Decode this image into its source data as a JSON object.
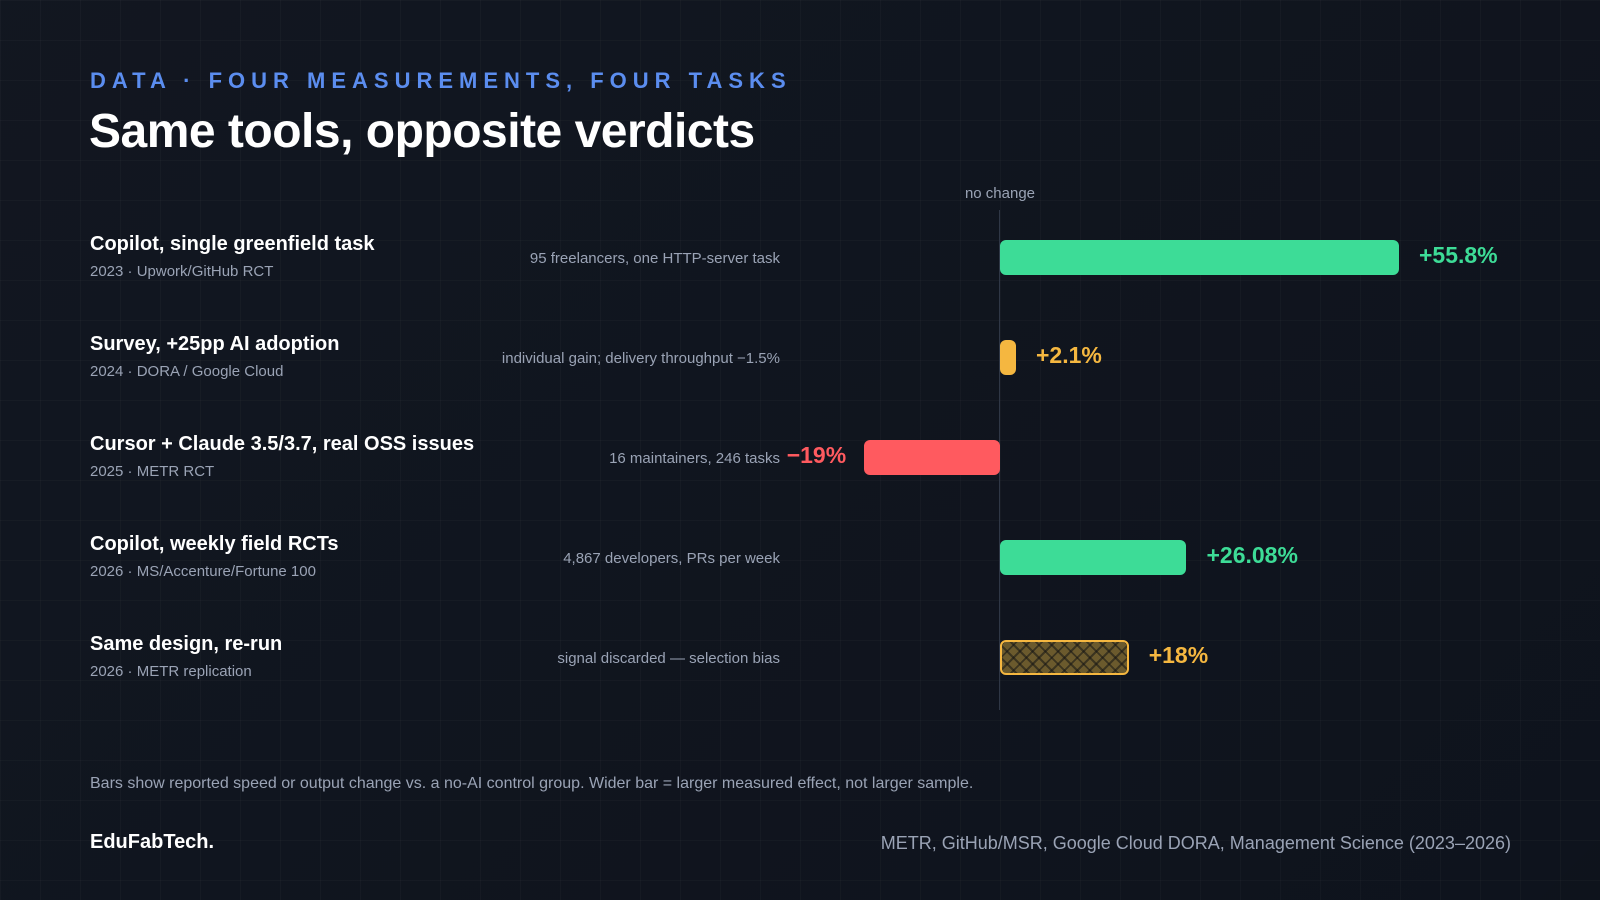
{
  "header": {
    "kicker": "DATA · FOUR MEASUREMENTS, FOUR TASKS",
    "title": "Same tools, opposite verdicts"
  },
  "colors": {
    "positive": "#3ddc97",
    "neutral": "#f5b740",
    "negative": "#ff5a5f",
    "accent": "#5b8def"
  },
  "chart_data": {
    "type": "bar",
    "orientation": "horizontal",
    "zero_label": "no change",
    "unit": "%",
    "categories": [
      "Copilot, single greenfield task",
      "Survey, +25pp AI adoption",
      "Cursor + Claude 3.5/3.7, real OSS issues",
      "Copilot, weekly field RCTs",
      "Same design, re-run"
    ],
    "values": [
      55.8,
      2.1,
      -19,
      26.08,
      18
    ],
    "rows": [
      {
        "title": "Copilot, single greenfield task",
        "meta": "2023 · Upwork/GitHub RCT",
        "note": "95 freelancers, one HTTP-server task",
        "value": 55.8,
        "value_label": "+55.8%",
        "color": "#3ddc97",
        "style": "solid"
      },
      {
        "title": "Survey, +25pp AI adoption",
        "meta": "2024 · DORA / Google Cloud",
        "note": "individual gain; delivery throughput −1.5%",
        "value": 2.1,
        "value_label": "+2.1%",
        "color": "#f5b740",
        "style": "solid"
      },
      {
        "title": "Cursor + Claude 3.5/3.7, real OSS issues",
        "meta": "2025 · METR RCT",
        "note": "16 maintainers, 246 tasks",
        "value": -19,
        "value_label": "−19%",
        "color": "#ff5a5f",
        "style": "solid"
      },
      {
        "title": "Copilot, weekly field RCTs",
        "meta": "2026 · MS/Accenture/Fortune 100",
        "note": "4,867 developers, PRs per week",
        "value": 26.08,
        "value_label": "+26.08%",
        "color": "#3ddc97",
        "style": "solid"
      },
      {
        "title": "Same design, re-run",
        "meta": "2026 · METR replication",
        "note": "signal discarded — selection bias",
        "value": 18,
        "value_label": "+18%",
        "color": "#f5b740",
        "style": "hatched"
      }
    ]
  },
  "footer": {
    "footnote": "Bars show reported speed or output change vs. a no-AI control group. Wider bar = larger measured effect, not larger sample.",
    "brand": "EduFabTech.",
    "sources": "METR, GitHub/MSR, Google Cloud DORA, Management Science (2023–2026)"
  }
}
